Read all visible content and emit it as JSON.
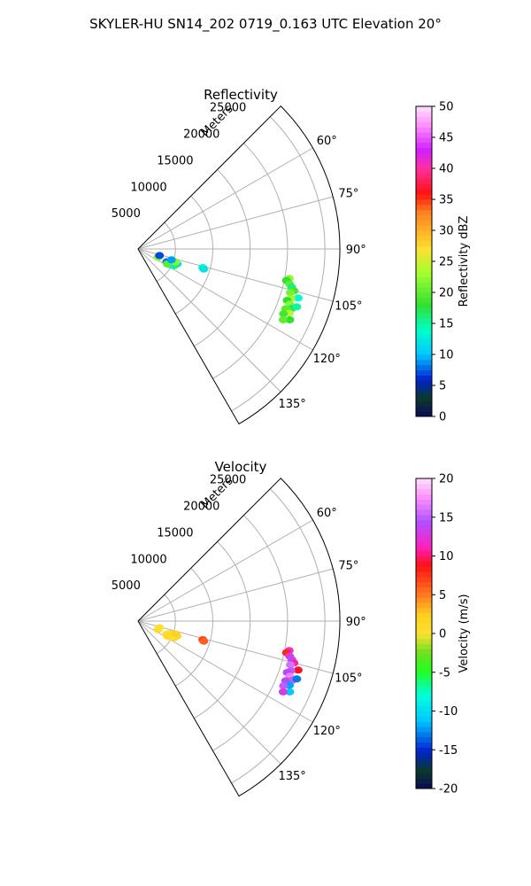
{
  "figure": {
    "title": "SKYLER-HU  SN14_202  0719_0.163 UTC Elevation 20°"
  },
  "colors": {
    "grid": "#b0b0b0",
    "frame": "#000000"
  },
  "chart_data": [
    {
      "type": "polar-ppi",
      "title": "Reflectivity",
      "range_label": "Meters",
      "range_ticks": [
        5000,
        10000,
        15000,
        20000,
        25000
      ],
      "rlim": [
        0,
        27000
      ],
      "azimuth_range_deg": [
        45,
        150
      ],
      "azimuth_ticks": [
        "60°",
        "75°",
        "90°",
        "105°",
        "120°",
        "135°"
      ],
      "azimuth_tick_values": [
        60,
        75,
        90,
        105,
        120,
        135
      ],
      "grid": true,
      "colorbar": {
        "label": "Reflectivity dBZ",
        "min": 0,
        "max": 50,
        "ticks": [
          0,
          5,
          10,
          15,
          20,
          25,
          30,
          35,
          40,
          45,
          50
        ],
        "colormap": "pyart_NWSRef-like"
      },
      "gates": [
        {
          "az": 110,
          "range": 5000,
          "value": 4
        },
        {
          "az": 112,
          "range": 4500,
          "value": 6
        },
        {
          "az": 114,
          "range": 4200,
          "value": 8
        },
        {
          "az": 111,
          "range": 5600,
          "value": 12
        },
        {
          "az": 113,
          "range": 5100,
          "value": 18
        },
        {
          "az": 115,
          "range": 5300,
          "value": 16
        },
        {
          "az": 116,
          "range": 4800,
          "value": 13
        },
        {
          "az": 109,
          "range": 5300,
          "value": 22
        },
        {
          "az": 117,
          "range": 4400,
          "value": 20
        },
        {
          "az": 108,
          "range": 4700,
          "value": 9
        },
        {
          "az": 113,
          "range": 2900,
          "value": 22
        },
        {
          "az": 107,
          "range": 3000,
          "value": 7
        },
        {
          "az": 106,
          "range": 9000,
          "value": 14
        },
        {
          "az": 107,
          "range": 9200,
          "value": 12
        },
        {
          "az": 101,
          "range": 20600,
          "value": 22
        },
        {
          "az": 102,
          "range": 20300,
          "value": 18
        },
        {
          "az": 103,
          "range": 20800,
          "value": 20
        },
        {
          "az": 104,
          "range": 21200,
          "value": 16
        },
        {
          "az": 105,
          "range": 21600,
          "value": 19
        },
        {
          "az": 106,
          "range": 21200,
          "value": 21
        },
        {
          "az": 107,
          "range": 22400,
          "value": 14
        },
        {
          "az": 108,
          "range": 21500,
          "value": 23
        },
        {
          "az": 109,
          "range": 21100,
          "value": 18
        },
        {
          "az": 110,
          "range": 21600,
          "value": 22
        },
        {
          "az": 111,
          "range": 22100,
          "value": 17
        },
        {
          "az": 112,
          "range": 21300,
          "value": 20
        },
        {
          "az": 113,
          "range": 22000,
          "value": 24
        },
        {
          "az": 114,
          "range": 21300,
          "value": 19
        },
        {
          "az": 115,
          "range": 22400,
          "value": 18
        },
        {
          "az": 116,
          "range": 21600,
          "value": 20
        },
        {
          "az": 110,
          "range": 22600,
          "value": 15
        }
      ]
    },
    {
      "type": "polar-ppi",
      "title": "Velocity",
      "range_label": "Meters",
      "range_ticks": [
        5000,
        10000,
        15000,
        20000,
        25000
      ],
      "rlim": [
        0,
        27000
      ],
      "azimuth_range_deg": [
        45,
        150
      ],
      "azimuth_ticks": [
        "60°",
        "75°",
        "90°",
        "105°",
        "120°",
        "135°"
      ],
      "azimuth_tick_values": [
        60,
        75,
        90,
        105,
        120,
        135
      ],
      "grid": true,
      "colorbar": {
        "label": "Velocity (m/s)",
        "min": -20,
        "max": 20,
        "ticks": [
          -20,
          -15,
          -10,
          -5,
          0,
          5,
          10,
          15,
          20
        ],
        "colormap": "pyart_BuDRd18-like"
      },
      "gates": [
        {
          "az": 110,
          "range": 5000,
          "value": 1
        },
        {
          "az": 112,
          "range": 4500,
          "value": 2
        },
        {
          "az": 114,
          "range": 4200,
          "value": 0
        },
        {
          "az": 111,
          "range": 5600,
          "value": 1
        },
        {
          "az": 113,
          "range": 5100,
          "value": 2
        },
        {
          "az": 115,
          "range": 5300,
          "value": 1
        },
        {
          "az": 116,
          "range": 4800,
          "value": 0
        },
        {
          "az": 109,
          "range": 5300,
          "value": 2
        },
        {
          "az": 117,
          "range": 4400,
          "value": 1
        },
        {
          "az": 113,
          "range": 2900,
          "value": 1
        },
        {
          "az": 107,
          "range": 3000,
          "value": 0
        },
        {
          "az": 106,
          "range": 9000,
          "value": 7
        },
        {
          "az": 107,
          "range": 9200,
          "value": 6
        },
        {
          "az": 101,
          "range": 20600,
          "value": 12
        },
        {
          "az": 102,
          "range": 20300,
          "value": 8
        },
        {
          "az": 103,
          "range": 20800,
          "value": 13
        },
        {
          "az": 104,
          "range": 21200,
          "value": 14
        },
        {
          "az": 105,
          "range": 21600,
          "value": 11
        },
        {
          "az": 106,
          "range": 21200,
          "value": 16
        },
        {
          "az": 107,
          "range": 22400,
          "value": 9
        },
        {
          "az": 108,
          "range": 21500,
          "value": 15
        },
        {
          "az": 109,
          "range": 21100,
          "value": 14
        },
        {
          "az": 110,
          "range": 21600,
          "value": 17
        },
        {
          "az": 111,
          "range": 22100,
          "value": 15
        },
        {
          "az": 112,
          "range": 21300,
          "value": 14
        },
        {
          "az": 113,
          "range": 22000,
          "value": -12
        },
        {
          "az": 114,
          "range": 21300,
          "value": 15
        },
        {
          "az": 115,
          "range": 22400,
          "value": -11
        },
        {
          "az": 116,
          "range": 21600,
          "value": 13
        },
        {
          "az": 110,
          "range": 22600,
          "value": -13
        }
      ]
    }
  ]
}
